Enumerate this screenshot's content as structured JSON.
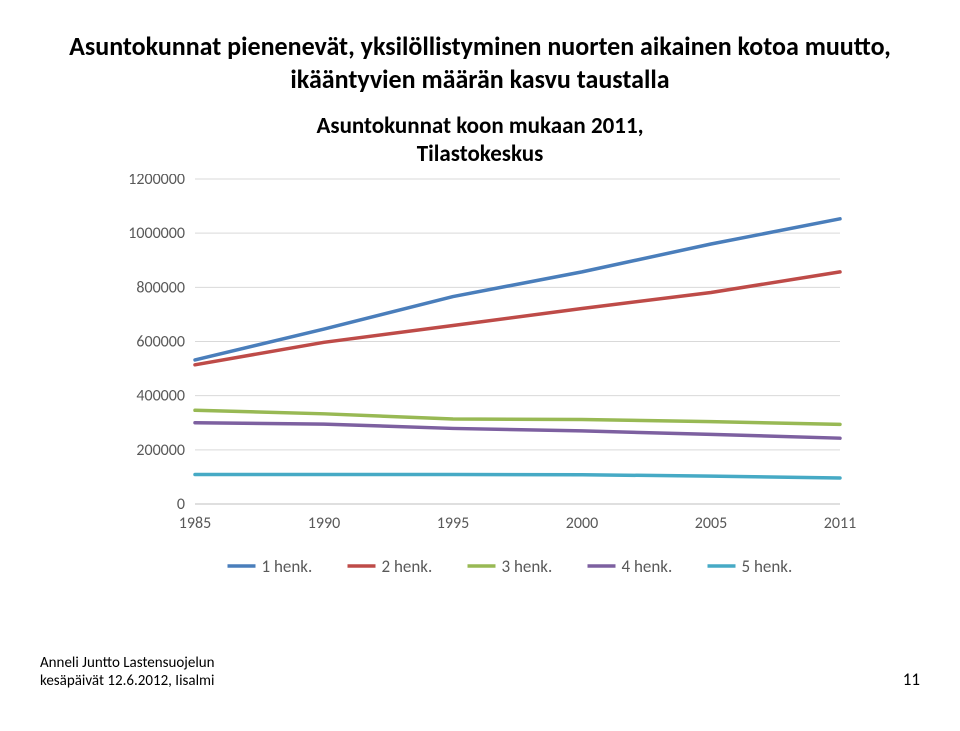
{
  "page_title_line1": "Asuntokunnat pienenevät, yksilöllistyminen nuorten aikainen kotoa muutto,",
  "page_title_line2": "ikääntyvien määrän kasvu taustalla",
  "chart": {
    "type": "line",
    "title_line1": "Asuntokunnat koon mukaan 2011,",
    "title_line2": "Tilastokeskus",
    "x_categories": [
      "1985",
      "1990",
      "1995",
      "2000",
      "2005",
      "2011"
    ],
    "ylim": [
      0,
      1200000
    ],
    "ytick_step": 200000,
    "ytick_labels": [
      "0",
      "200000",
      "400000",
      "600000",
      "800000",
      "1000000",
      "1200000"
    ],
    "grid_color": "#d9d9d9",
    "border_color": "#bfbfbf",
    "background_color": "#ffffff",
    "axis_font_size": 16,
    "axis_font_color": "#595959",
    "line_width": 3.5,
    "series": [
      {
        "name": "1 henk.",
        "color": "#4a7ebb",
        "values": [
          532000,
          646000,
          766000,
          857000,
          960000,
          1053000
        ]
      },
      {
        "name": "2 henk.",
        "color": "#be4b48",
        "values": [
          514000,
          597000,
          659000,
          722000,
          781000,
          857000
        ]
      },
      {
        "name": "3 henk.",
        "color": "#98b954",
        "values": [
          346000,
          333000,
          314000,
          312000,
          304000,
          294000
        ]
      },
      {
        "name": "4 henk.",
        "color": "#7d60a0",
        "values": [
          300000,
          295000,
          279000,
          270000,
          257000,
          243000
        ]
      },
      {
        "name": "5 henk.",
        "color": "#46aac5",
        "values": [
          109000,
          109000,
          109000,
          108000,
          103000,
          96000
        ]
      }
    ],
    "legend_font_size": 17,
    "legend_font_color": "#595959"
  },
  "footer": {
    "left_line1": "Anneli Juntto Lastensuojelun",
    "left_line2": "kesäpäivät 12.6.2012, Iisalmi",
    "page_number": "11"
  }
}
